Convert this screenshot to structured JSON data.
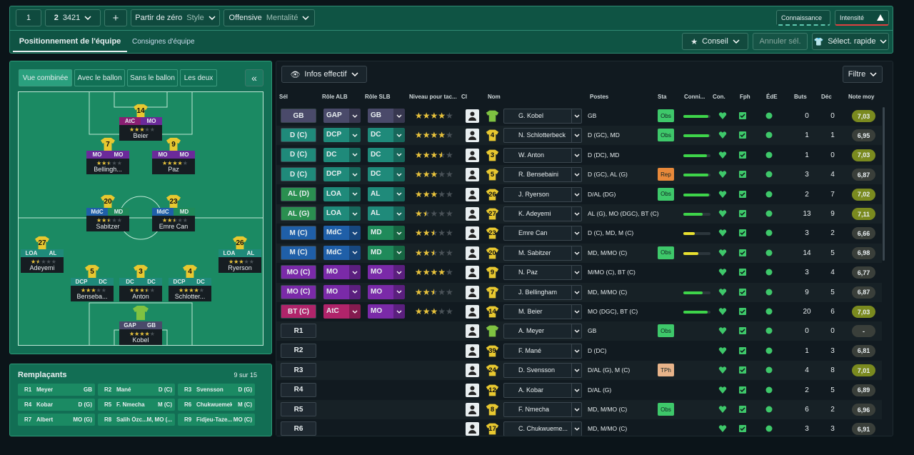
{
  "toolbar": {
    "slot": "1",
    "formation_slot": "2",
    "formation": "3421",
    "add": "+",
    "style_value": "Partir de zéro",
    "style_label": "Style",
    "mentality_value": "Offensive",
    "mentality_label": "Mentalité",
    "knowledge": "Connaissance",
    "intensity": "Intensité"
  },
  "tabs": [
    "Positionnement de l'équipe",
    "Consignes d'équipe"
  ],
  "actions": {
    "advice": "Conseil",
    "cancel": "Annuler sél.",
    "quick_select": "Sélect. rapide"
  },
  "pitch": {
    "tabs": [
      "Vue combinée",
      "Avec le ballon",
      "Sans le ballon",
      "Les deux"
    ],
    "collapse": "«",
    "players": [
      {
        "number": "14",
        "roles": [
          "AtC",
          "MO"
        ],
        "role_colors": [
          "#8a1f72",
          "#6b2a9a"
        ],
        "stars": 3,
        "name": "Beier"
      },
      {
        "number": "7",
        "roles": [
          "MO",
          "MO"
        ],
        "role_colors": [
          "#6b2a9a",
          "#6b2a9a"
        ],
        "stars": 2.5,
        "name": "Bellingh..."
      },
      {
        "number": "9",
        "roles": [
          "MO",
          "MO"
        ],
        "role_colors": [
          "#6b2a9a",
          "#6b2a9a"
        ],
        "stars": 4,
        "name": "Paz"
      },
      {
        "number": "20",
        "roles": [
          "MdC",
          "MD"
        ],
        "role_colors": [
          "#1f5fa8",
          "#1f8a5a"
        ],
        "stars": 2.5,
        "name": "Sabitzer"
      },
      {
        "number": "23",
        "roles": [
          "MdC",
          "MD"
        ],
        "role_colors": [
          "#1f5fa8",
          "#1f8a5a"
        ],
        "stars": 2.5,
        "name": "Emre Can"
      },
      {
        "number": "27",
        "roles": [
          "LOA",
          "AL"
        ],
        "role_colors": [
          "#1f8a7a",
          "#1f8a7a"
        ],
        "stars": 1.5,
        "name": "Adeyemi"
      },
      {
        "number": "26",
        "roles": [
          "LOA",
          "AL"
        ],
        "role_colors": [
          "#1f8a7a",
          "#1f8a7a"
        ],
        "stars": 3,
        "name": "Ryerson"
      },
      {
        "number": "5",
        "roles": [
          "DCP",
          "DC"
        ],
        "role_colors": [
          "#1f8a7a",
          "#1f8a7a"
        ],
        "stars": 3,
        "name": "Bensebа..."
      },
      {
        "number": "3",
        "roles": [
          "DC",
          "DC"
        ],
        "role_colors": [
          "#1f8a7a",
          "#1f8a7a"
        ],
        "stars": 3.5,
        "name": "Anton"
      },
      {
        "number": "4",
        "roles": [
          "DCP",
          "DC"
        ],
        "role_colors": [
          "#1f8a7a",
          "#1f8a7a"
        ],
        "stars": 4,
        "name": "Schlotter..."
      },
      {
        "number": null,
        "roles": [
          "GAP",
          "GB"
        ],
        "role_colors": [
          "#4a4a6a",
          "#4a4a6a"
        ],
        "stars": 4,
        "name": "Kobel"
      }
    ]
  },
  "substitutes": {
    "title": "Remplaçants",
    "count": "9 sur 15",
    "items": [
      {
        "slot": "R1",
        "name": "Meyer",
        "position": "GB"
      },
      {
        "slot": "R2",
        "name": "Mané",
        "position": "D (C)"
      },
      {
        "slot": "R3",
        "name": "Svensson",
        "position": "D (G)"
      },
      {
        "slot": "R4",
        "name": "Kobar",
        "position": "D (G)"
      },
      {
        "slot": "R5",
        "name": "F. Nmecha",
        "position": "M (C)"
      },
      {
        "slot": "R6",
        "name": "Chukwuemeka",
        "position": "M (C)"
      },
      {
        "slot": "R7",
        "name": "Albert",
        "position": "MO (G)"
      },
      {
        "slot": "R8",
        "name": "Salih Özc...",
        "position": "M, MO (..."
      },
      {
        "slot": "R9",
        "name": "Fidjeu-Taze...",
        "position": "MO (C)"
      }
    ]
  },
  "squad": {
    "view": "Infos effectif",
    "filter": "Filtre",
    "columns": [
      "Sél",
      "Rôle ALB",
      "Rôle SLB",
      "Niveau pour tac...",
      "CI",
      "Nom",
      "Postes",
      "Sta",
      "Conni...",
      "Con.",
      "Fph",
      "ÉdE",
      "Buts",
      "Déc",
      "Note moy"
    ],
    "rows": [
      {
        "sel": "GB",
        "alb": "GAP",
        "slb": "GB",
        "colors": [
          "#4a4a6a",
          "#4a4a6a",
          "#4a4a6a"
        ],
        "stars": 4,
        "number": null,
        "shirt_color": "#7fc241",
        "name": "G. Kobel",
        "positions": "GB",
        "status": "Obs",
        "status_color": "#3ec86a",
        "knowledge": 92,
        "goals": 0,
        "assists": 0,
        "rating": "7,03",
        "rating_color": "#7a8a1f"
      },
      {
        "sel": "D (C)",
        "alb": "DCP",
        "slb": "DC",
        "colors": [
          "#1f8a7a",
          "#1f8a7a",
          "#1f8a7a"
        ],
        "stars": 4,
        "number": "4",
        "shirt_color": "#e8c830",
        "name": "N. Schlotterbeck",
        "positions": "D (GC), MD",
        "status": "Obs",
        "status_color": "#3ec86a",
        "knowledge": 95,
        "goals": 1,
        "assists": 1,
        "rating": "6,95",
        "rating_color": "#3a3f3a"
      },
      {
        "sel": "D (C)",
        "alb": "DC",
        "slb": "DC",
        "colors": [
          "#1f8a7a",
          "#1f8a7a",
          "#1f8a7a"
        ],
        "stars": 3.5,
        "number": "3",
        "shirt_color": "#e8c830",
        "name": "W. Anton",
        "positions": "D (DC), MD",
        "status": null,
        "status_color": null,
        "knowledge": 88,
        "goals": 1,
        "assists": 0,
        "rating": "7,03",
        "rating_color": "#7a8a1f"
      },
      {
        "sel": "D (C)",
        "alb": "DCP",
        "slb": "DC",
        "colors": [
          "#1f8a7a",
          "#1f8a7a",
          "#1f8a7a"
        ],
        "stars": 3,
        "number": "5",
        "shirt_color": "#e8c830",
        "name": "R. Bensebaini",
        "positions": "D (GC), AL (G)",
        "status": "Rep",
        "status_color": "#e8893a",
        "knowledge": 92,
        "goals": 3,
        "assists": 4,
        "rating": "6,87",
        "rating_color": "#3a3f3a"
      },
      {
        "sel": "AL (D)",
        "alb": "LOA",
        "slb": "AL",
        "colors": [
          "#2a8f50",
          "#1f8a7a",
          "#1f8a7a"
        ],
        "stars": 3,
        "number": "26",
        "shirt_color": "#e8c830",
        "name": "J. Ryerson",
        "positions": "D/AL (DG)",
        "status": "Obs",
        "status_color": "#3ec86a",
        "knowledge": 95,
        "goals": 2,
        "assists": 7,
        "rating": "7,02",
        "rating_color": "#7a8a1f"
      },
      {
        "sel": "AL (G)",
        "alb": "LOA",
        "slb": "AL",
        "colors": [
          "#2a8f50",
          "#1f8a7a",
          "#1f8a7a"
        ],
        "stars": 1.5,
        "number": "27",
        "shirt_color": "#e8c830",
        "name": "K. Adeyemi",
        "positions": "AL (G), MO (DGC), BT (C)",
        "status": null,
        "status_color": null,
        "knowledge": 72,
        "goals": 13,
        "assists": 9,
        "rating": "7,11",
        "rating_color": "#7a8a1f"
      },
      {
        "sel": "M (C)",
        "alb": "MdC",
        "slb": "MD",
        "colors": [
          "#1f5fa8",
          "#1f5fa8",
          "#1f8a5a"
        ],
        "stars": 2.5,
        "number": "23",
        "shirt_color": "#e8c830",
        "name": "Emre Can",
        "positions": "D (C), MD, M (C)",
        "status": null,
        "status_color": null,
        "knowledge": 42,
        "goals": 3,
        "assists": 2,
        "rating": "6,66",
        "rating_color": "#3a3f3a"
      },
      {
        "sel": "M (C)",
        "alb": "MdC",
        "slb": "MD",
        "colors": [
          "#1f5fa8",
          "#1f5fa8",
          "#1f8a5a"
        ],
        "stars": 2.5,
        "number": "20",
        "shirt_color": "#e8c830",
        "name": "M. Sabitzer",
        "positions": "MD, M/MO (C)",
        "status": "Obs",
        "status_color": "#3ec86a",
        "knowledge": 55,
        "goals": 14,
        "assists": 5,
        "rating": "6,98",
        "rating_color": "#3a3f3a"
      },
      {
        "sel": "MO (C)",
        "alb": "MO",
        "slb": "MO",
        "colors": [
          "#7a2aa8",
          "#7a2aa8",
          "#7a2aa8"
        ],
        "stars": 4,
        "number": "9",
        "shirt_color": "#e8c830",
        "name": "N. Paz",
        "positions": "M/MO (C), BT (C)",
        "status": null,
        "status_color": null,
        "knowledge": null,
        "goals": 3,
        "assists": 4,
        "rating": "6,77",
        "rating_color": "#3a3f3a"
      },
      {
        "sel": "MO (C)",
        "alb": "MO",
        "slb": "MO",
        "colors": [
          "#7a2aa8",
          "#7a2aa8",
          "#7a2aa8"
        ],
        "stars": 2.5,
        "number": "7",
        "shirt_color": "#e8c830",
        "name": "J. Bellingham",
        "positions": "MD, M/MO (C)",
        "status": null,
        "status_color": null,
        "knowledge": 72,
        "goals": 9,
        "assists": 5,
        "rating": "6,87",
        "rating_color": "#3a3f3a"
      },
      {
        "sel": "BT (C)",
        "alb": "AtC",
        "slb": "MO",
        "colors": [
          "#b0246a",
          "#b0246a",
          "#7a2aa8"
        ],
        "stars": 3,
        "number": "14",
        "shirt_color": "#e8c830",
        "name": "M. Beier",
        "positions": "MO (DGC), BT (C)",
        "status": null,
        "status_color": null,
        "knowledge": 90,
        "goals": 20,
        "assists": 6,
        "rating": "7,03",
        "rating_color": "#7a8a1f"
      },
      {
        "sel": "R1",
        "alb": null,
        "slb": null,
        "colors": [
          "#1e2830",
          null,
          null
        ],
        "stars": null,
        "number": null,
        "shirt_color": "#7fc241",
        "name": "A. Meyer",
        "positions": "GB",
        "status": "Obs",
        "status_color": "#3ec86a",
        "knowledge": null,
        "goals": 0,
        "assists": 0,
        "rating": "-",
        "rating_color": "#3a3f3a"
      },
      {
        "sel": "R2",
        "alb": null,
        "slb": null,
        "colors": [
          "#1e2830",
          null,
          null
        ],
        "stars": null,
        "number": "39",
        "shirt_color": "#e8c830",
        "name": "F. Mané",
        "positions": "D (DC)",
        "status": null,
        "status_color": null,
        "knowledge": null,
        "goals": 1,
        "assists": 3,
        "rating": "6,81",
        "rating_color": "#3a3f3a"
      },
      {
        "sel": "R3",
        "alb": null,
        "slb": null,
        "colors": [
          "#1e2830",
          null,
          null
        ],
        "stars": null,
        "number": "24",
        "shirt_color": "#e8c830",
        "name": "D. Svensson",
        "positions": "D/AL (G), M (C)",
        "status": "TPh",
        "status_color": "#e8b48a",
        "knowledge": null,
        "goals": 4,
        "assists": 8,
        "rating": "7,01",
        "rating_color": "#7a8a1f"
      },
      {
        "sel": "R4",
        "alb": null,
        "slb": null,
        "colors": [
          "#1e2830",
          null,
          null
        ],
        "stars": null,
        "number": "12",
        "shirt_color": "#e8c830",
        "name": "A. Kobar",
        "positions": "D/AL (G)",
        "status": null,
        "status_color": null,
        "knowledge": null,
        "goals": 2,
        "assists": 5,
        "rating": "6,89",
        "rating_color": "#3a3f3a"
      },
      {
        "sel": "R5",
        "alb": null,
        "slb": null,
        "colors": [
          "#1e2830",
          null,
          null
        ],
        "stars": null,
        "number": "8",
        "shirt_color": "#e8c830",
        "name": "F. Nmecha",
        "positions": "MD, M/MO (C)",
        "status": "Obs",
        "status_color": "#3ec86a",
        "knowledge": null,
        "goals": 6,
        "assists": 2,
        "rating": "6,96",
        "rating_color": "#3a3f3a"
      },
      {
        "sel": "R6",
        "alb": null,
        "slb": null,
        "colors": [
          "#1e2830",
          null,
          null
        ],
        "stars": null,
        "number": "17",
        "shirt_color": "#e8c830",
        "name": "C. Chukwueme...",
        "positions": "MD, M/MO (C)",
        "status": null,
        "status_color": null,
        "knowledge": null,
        "goals": 3,
        "assists": 3,
        "rating": "6,91",
        "rating_color": "#3a3f3a"
      }
    ]
  }
}
